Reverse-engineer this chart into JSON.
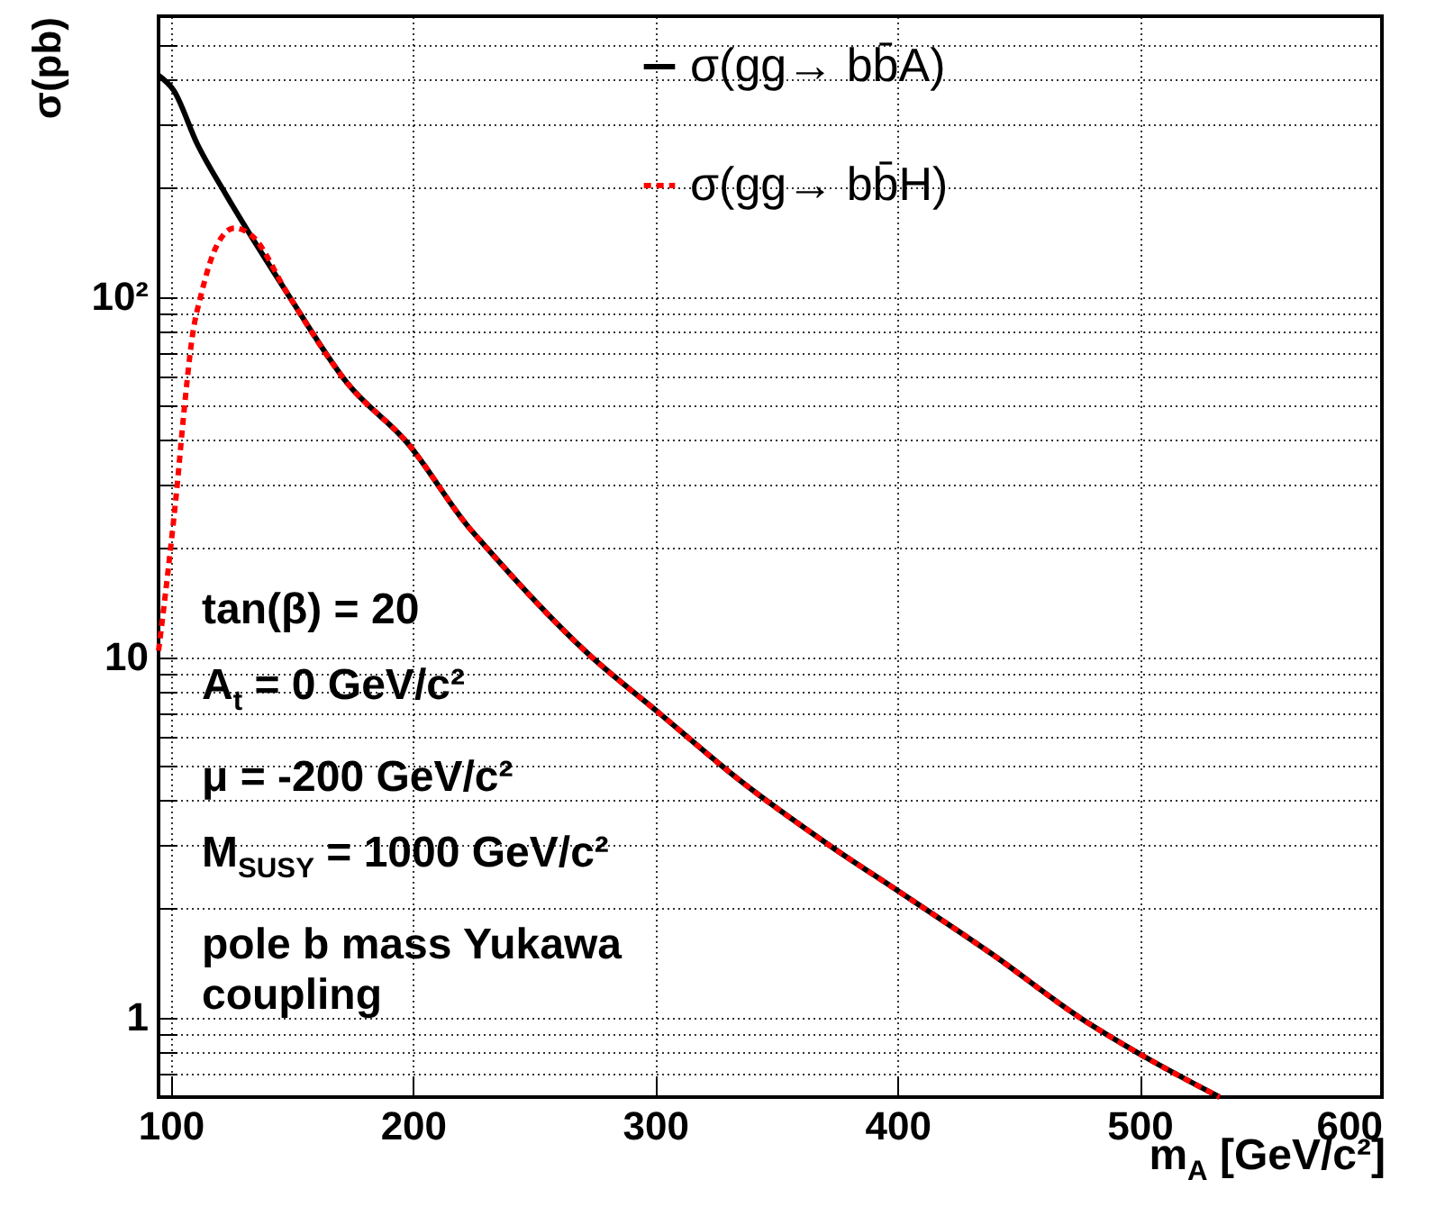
{
  "chart_data": {
    "type": "line",
    "xlabel": "m$_{A}$ [GeV/c²]",
    "ylabel": "σ(pb)",
    "log": "y",
    "grid": true,
    "legend": "top right",
    "marker": "none",
    "xlim": [
      95,
      600
    ],
    "xticks": [
      100,
      200,
      300,
      400,
      500,
      600
    ],
    "ylim": [
      0.6,
      600
    ],
    "yticks": [
      {
        "value": 0.6,
        "label": null
      },
      {
        "value": 0.7,
        "label": null
      },
      {
        "value": 0.8,
        "label": null
      },
      {
        "value": 0.9,
        "label": null
      },
      1,
      {
        "value": 2,
        "label": null
      },
      {
        "value": 3,
        "label": null
      },
      {
        "value": 4,
        "label": null
      },
      {
        "value": 5,
        "label": null
      },
      {
        "value": 6,
        "label": null
      },
      {
        "value": 7,
        "label": null
      },
      {
        "value": 8,
        "label": null
      },
      {
        "value": 9,
        "label": null
      },
      10,
      {
        "value": 20,
        "label": null
      },
      {
        "value": 30,
        "label": null
      },
      {
        "value": 40,
        "label": null
      },
      {
        "value": 50,
        "label": null
      },
      {
        "value": 60,
        "label": null
      },
      {
        "value": 70,
        "label": null
      },
      {
        "value": 80,
        "label": null
      },
      {
        "value": 90,
        "label": null
      },
      {
        "value": 100,
        "label": "10²"
      },
      {
        "value": 200,
        "label": null
      },
      {
        "value": 300,
        "label": null
      },
      {
        "value": 400,
        "label": null
      },
      {
        "value": 500,
        "label": null
      }
    ],
    "annotations": [
      "tan(β) = 20",
      "A$_{t}$ = 0 GeV/c²",
      "μ = -200 GeV/c²",
      "M$_{SUSY}$ = 1000 GeV/c²",
      "pole b mass Yukawa coupling"
    ],
    "series": [
      {
        "name": "σ(gg→ bb̄A)",
        "color": "#000000",
        "line_style": "solid",
        "x": [
          95,
          101.2,
          111,
          122.8,
          148.2,
          173,
          197.8,
          223,
          227.6,
          272.3,
          302,
          334.6,
          371.9,
          401.6,
          438.8,
          476,
          500.8,
          533
        ],
        "values": [
          411,
          374,
          265,
          192,
          102,
          57.4,
          39.2,
          22.9,
          21.1,
          10.2,
          6.95,
          4.56,
          3.0,
          2.21,
          1.5,
          0.99,
          0.785,
          0.6
        ]
      },
      {
        "name": "σ(gg→ bb̄H)",
        "color": "#ff0000",
        "line_style": "dashed",
        "x": [
          95,
          99,
          102.7,
          105.2,
          109,
          112.7,
          118.9,
          126.3,
          133.8,
          148.2,
          173,
          197.8,
          223,
          227.6,
          272.3,
          302,
          334.6,
          371.9,
          401.6,
          438.8,
          476,
          500.8,
          533
        ],
        "values": [
          10.4,
          17.5,
          30,
          45.7,
          78,
          102,
          138,
          155,
          147,
          102,
          57.4,
          39.2,
          22.9,
          21.1,
          10.2,
          6.95,
          4.56,
          3.0,
          2.21,
          1.5,
          0.99,
          0.785,
          0.6
        ]
      }
    ]
  }
}
